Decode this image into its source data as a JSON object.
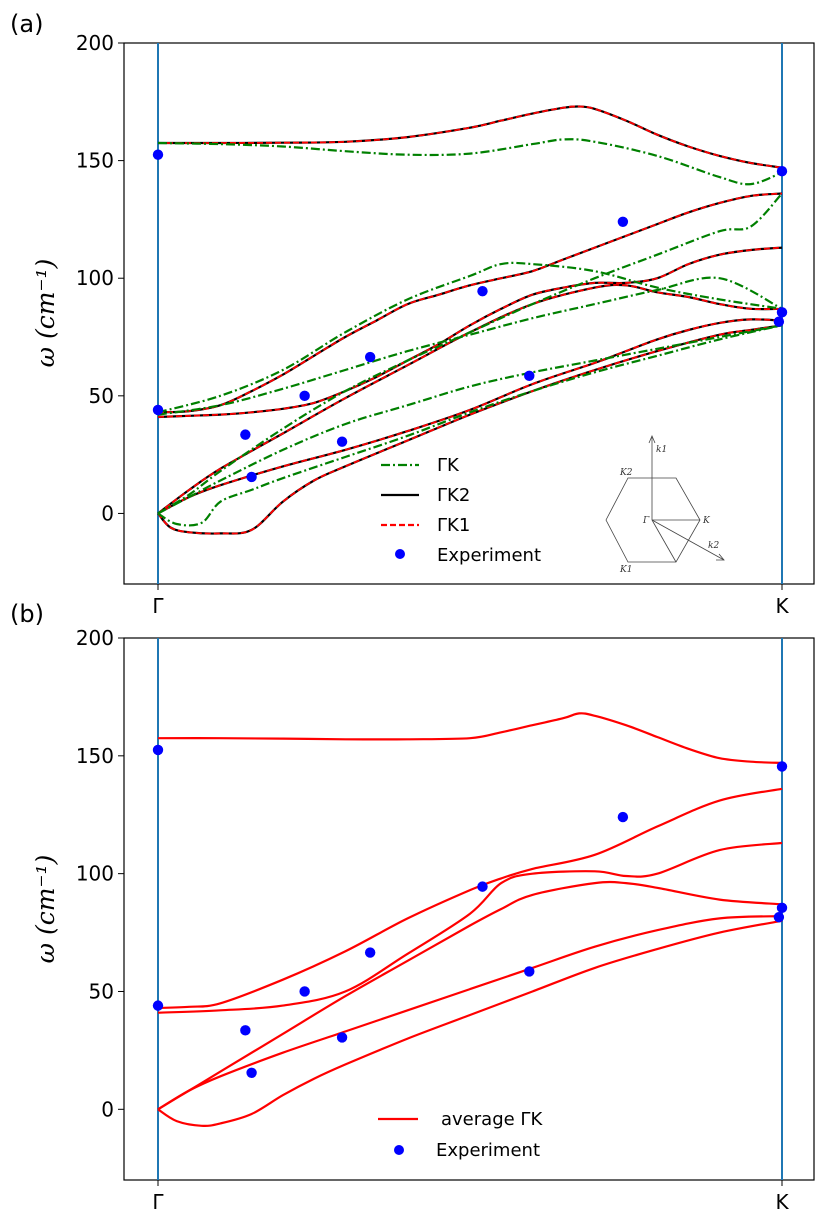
{
  "chart_data": [
    {
      "panel_label": "(a)",
      "type": "line",
      "ylabel": "ω  (cm⁻¹)",
      "ylim": [
        -30,
        200
      ],
      "yticks": [
        0,
        50,
        100,
        150,
        200
      ],
      "xticks": [
        "Γ",
        "K"
      ],
      "legend": [
        "ΓK",
        "ΓK2",
        "ΓK1",
        "Experiment"
      ],
      "legend_position": "lower-center",
      "colors": {
        "gk": "#008000",
        "gk2": "#000000",
        "gk1": "#ff0000",
        "exp": "#0000ff",
        "vline": "#1f77b4"
      },
      "inset_labels": {
        "k1": "k1",
        "k2": "k2",
        "K1": "K1",
        "K2": "K2",
        "Gamma": "Γ",
        "K": "K"
      },
      "series": [
        {
          "name": "ΓK1/ΓK2 branch 1",
          "x": [
            0.0,
            0.02,
            0.05,
            0.1,
            0.15,
            0.2,
            0.25,
            0.3,
            0.4,
            0.5,
            0.6,
            0.7,
            0.8,
            0.9,
            0.95,
            1.0
          ],
          "values": [
            0,
            -6,
            -8,
            -8.5,
            -7,
            5,
            14,
            20,
            31,
            42,
            52,
            61,
            69,
            76,
            78,
            80
          ]
        },
        {
          "name": "ΓK1/ΓK2 branch 2",
          "x": [
            0.0,
            0.05,
            0.1,
            0.2,
            0.3,
            0.4,
            0.5,
            0.6,
            0.7,
            0.75,
            0.8,
            0.85,
            0.9,
            0.95,
            1.0
          ],
          "values": [
            0,
            7,
            12,
            20,
            27,
            35,
            44,
            55,
            64,
            69,
            74,
            78,
            81,
            82.5,
            82
          ]
        },
        {
          "name": "ΓK1/ΓK2 branch 3",
          "x": [
            0.0,
            0.05,
            0.1,
            0.2,
            0.3,
            0.4,
            0.5,
            0.6,
            0.7,
            0.75,
            0.8,
            0.85,
            0.9,
            0.95,
            1.0
          ],
          "values": [
            0,
            10,
            19,
            34,
            49,
            63,
            77,
            89,
            96,
            97,
            94,
            92,
            89,
            87,
            87
          ]
        },
        {
          "name": "ΓK1/ΓK2 branch 4",
          "x": [
            0.0,
            0.05,
            0.1,
            0.15,
            0.2,
            0.25,
            0.3,
            0.35,
            0.4,
            0.45,
            0.5,
            0.55,
            0.6,
            0.65,
            0.7,
            0.75,
            0.8,
            0.85,
            0.9,
            0.95,
            1.0
          ],
          "values": [
            41,
            41.5,
            42,
            43,
            44.5,
            47,
            52,
            58,
            65,
            72,
            80,
            87,
            93,
            96,
            98,
            98,
            100,
            106,
            110,
            112,
            113
          ]
        },
        {
          "name": "ΓK1/ΓK2 branch 5",
          "x": [
            0.0,
            0.05,
            0.1,
            0.15,
            0.2,
            0.25,
            0.3,
            0.35,
            0.4,
            0.45,
            0.5,
            0.55,
            0.6,
            0.65,
            0.7,
            0.75,
            0.8,
            0.85,
            0.9,
            0.95,
            1.0
          ],
          "values": [
            43,
            43.5,
            46,
            52,
            59,
            67,
            75,
            82,
            89,
            93,
            97,
            100,
            103,
            108,
            113,
            118,
            123,
            128,
            132,
            135,
            136
          ]
        },
        {
          "name": "ΓK1/ΓK2 branch 6",
          "x": [
            0.0,
            0.1,
            0.2,
            0.3,
            0.4,
            0.5,
            0.55,
            0.6,
            0.65,
            0.675,
            0.7,
            0.75,
            0.8,
            0.85,
            0.9,
            0.95,
            1.0
          ],
          "values": [
            157.5,
            157.5,
            157.6,
            158,
            160,
            164,
            167,
            170,
            172.5,
            173,
            172,
            167,
            161,
            156,
            152,
            149,
            147
          ]
        },
        {
          "name": "ΓK branch 1",
          "x": [
            0.0,
            0.03,
            0.07,
            0.1,
            0.15,
            0.2,
            0.3,
            0.4,
            0.5,
            0.6,
            0.7,
            0.8,
            0.9,
            1.0
          ],
          "values": [
            0,
            -4.5,
            -4,
            5,
            10,
            15,
            24,
            33,
            43,
            52,
            60,
            67,
            74,
            80
          ]
        },
        {
          "name": "ΓK branch 2",
          "x": [
            0.0,
            0.05,
            0.1,
            0.2,
            0.3,
            0.4,
            0.5,
            0.6,
            0.7,
            0.8,
            0.9,
            1.0
          ],
          "values": [
            0,
            7,
            14,
            27,
            38,
            46,
            54,
            60,
            65,
            70,
            75,
            80
          ]
        },
        {
          "name": "ΓK branch 3",
          "x": [
            0.0,
            0.05,
            0.1,
            0.2,
            0.3,
            0.4,
            0.5,
            0.6,
            0.7,
            0.8,
            0.9,
            0.95,
            1.0
          ],
          "values": [
            0,
            8,
            18,
            36,
            52,
            65,
            77,
            89,
            100,
            110,
            120,
            122,
            136
          ]
        },
        {
          "name": "ΓK branch 4",
          "x": [
            0.0,
            0.1,
            0.2,
            0.3,
            0.4,
            0.5,
            0.6,
            0.7,
            0.8,
            0.9,
            1.0
          ],
          "values": [
            42,
            46,
            53,
            61,
            69,
            76,
            83,
            89,
            95,
            100,
            87
          ]
        },
        {
          "name": "ΓK branch 5",
          "x": [
            0.0,
            0.1,
            0.2,
            0.3,
            0.4,
            0.5,
            0.55,
            0.6,
            0.7,
            0.8,
            0.9,
            1.0
          ],
          "values": [
            43,
            50,
            61,
            77,
            91,
            101,
            106,
            106,
            103,
            96,
            91,
            87
          ]
        },
        {
          "name": "ΓK branch 6",
          "x": [
            0.0,
            0.1,
            0.2,
            0.3,
            0.4,
            0.5,
            0.6,
            0.65,
            0.7,
            0.8,
            0.9,
            0.95,
            1.0
          ],
          "values": [
            157.5,
            157,
            156,
            154,
            152.5,
            153,
            157,
            159,
            158,
            152,
            143,
            140,
            145
          ]
        },
        {
          "name": "Experiment",
          "type": "scatter",
          "x": [
            0.0,
            0.0,
            0.14,
            0.15,
            0.235,
            0.295,
            0.34,
            0.52,
            0.595,
            0.745,
            0.995,
            1.0,
            1.0
          ],
          "values": [
            152.5,
            44,
            33.5,
            15.5,
            50,
            30.5,
            66.5,
            94.5,
            58.5,
            124,
            81.5,
            85.5,
            145.5
          ]
        }
      ]
    },
    {
      "panel_label": "(b)",
      "type": "line",
      "ylabel": "ω  (cm⁻¹)",
      "ylim": [
        -30,
        200
      ],
      "yticks": [
        0,
        50,
        100,
        150,
        200
      ],
      "xticks": [
        "Γ",
        "K"
      ],
      "legend": [
        "average ΓK",
        "Experiment"
      ],
      "legend_position": "lower-center",
      "colors": {
        "avg": "#ff0000",
        "exp": "#0000ff",
        "vline": "#1f77b4"
      },
      "series": [
        {
          "name": "average ΓK branch 1",
          "x": [
            0.0,
            0.03,
            0.07,
            0.1,
            0.15,
            0.2,
            0.25,
            0.3,
            0.4,
            0.5,
            0.6,
            0.7,
            0.8,
            0.9,
            1.0
          ],
          "values": [
            0,
            -5,
            -7,
            -6,
            -2,
            6,
            13,
            19,
            30,
            40,
            50,
            60,
            68,
            75,
            80
          ]
        },
        {
          "name": "average ΓK branch 2",
          "x": [
            0.0,
            0.05,
            0.1,
            0.2,
            0.3,
            0.4,
            0.5,
            0.6,
            0.7,
            0.8,
            0.9,
            1.0
          ],
          "values": [
            0,
            8,
            14,
            24,
            33,
            42,
            51,
            60,
            69,
            76,
            81,
            82
          ]
        },
        {
          "name": "average ΓK branch 3",
          "x": [
            0.0,
            0.05,
            0.1,
            0.2,
            0.3,
            0.4,
            0.5,
            0.55,
            0.6,
            0.7,
            0.75,
            0.8,
            0.9,
            1.0
          ],
          "values": [
            0,
            8,
            16,
            32,
            48,
            63,
            78,
            85,
            91,
            96,
            96,
            94,
            89,
            87
          ]
        },
        {
          "name": "average ΓK branch 4",
          "x": [
            0.0,
            0.1,
            0.2,
            0.3,
            0.4,
            0.5,
            0.55,
            0.6,
            0.7,
            0.75,
            0.8,
            0.9,
            1.0
          ],
          "values": [
            41,
            42,
            44,
            50,
            66,
            83,
            96,
            100,
            101,
            99,
            100,
            110,
            113
          ]
        },
        {
          "name": "average ΓK branch 5",
          "x": [
            0.0,
            0.05,
            0.1,
            0.2,
            0.3,
            0.4,
            0.5,
            0.55,
            0.6,
            0.7,
            0.8,
            0.9,
            1.0
          ],
          "values": [
            43,
            43.5,
            45,
            55,
            67,
            81,
            93,
            98,
            102,
            108,
            120,
            131,
            136
          ]
        },
        {
          "name": "average ΓK branch 6",
          "x": [
            0.0,
            0.1,
            0.2,
            0.3,
            0.4,
            0.5,
            0.55,
            0.6,
            0.65,
            0.675,
            0.7,
            0.75,
            0.8,
            0.85,
            0.9,
            0.95,
            1.0
          ],
          "values": [
            157.5,
            157.5,
            157.3,
            157,
            157,
            157.5,
            160,
            163,
            166,
            168,
            167,
            163,
            158,
            153,
            149,
            147.5,
            147
          ]
        },
        {
          "name": "Experiment",
          "type": "scatter",
          "x": [
            0.0,
            0.0,
            0.14,
            0.15,
            0.235,
            0.295,
            0.34,
            0.52,
            0.595,
            0.745,
            0.995,
            1.0,
            1.0
          ],
          "values": [
            152.5,
            44,
            33.5,
            15.5,
            50,
            30.5,
            66.5,
            94.5,
            58.5,
            124,
            81.5,
            85.5,
            145.5
          ]
        }
      ]
    }
  ]
}
